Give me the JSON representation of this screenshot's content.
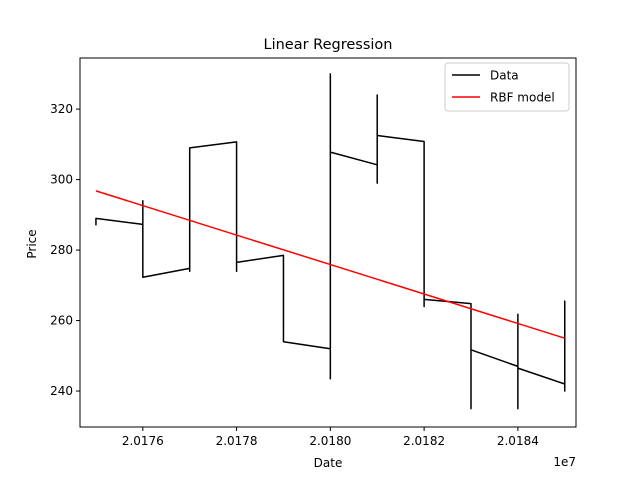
{
  "chart_data": {
    "type": "line",
    "title": "Linear Regression",
    "xlabel": "Date",
    "ylabel": "Price",
    "x_offset_label": "1e7",
    "xlim": [
      20174660,
      20185240
    ],
    "ylim": [
      229.8,
      334.5
    ],
    "xticks": [
      20176000,
      20178000,
      20180000,
      20182000,
      20184000
    ],
    "xtick_labels": [
      "2.0176",
      "2.0178",
      "2.0180",
      "2.0182",
      "2.0184"
    ],
    "yticks": [
      240,
      260,
      280,
      300,
      320
    ],
    "ytick_labels": [
      "240",
      "260",
      "280",
      "300",
      "320"
    ],
    "grid": false,
    "legend_position": "upper right",
    "series": [
      {
        "name": "Data",
        "color": "#000000",
        "points": [
          [
            20175000,
            287
          ],
          [
            20175000,
            289
          ],
          [
            20176000,
            287.3
          ],
          [
            20176000,
            290
          ],
          [
            20176000,
            284
          ],
          [
            20176000,
            294
          ],
          [
            20176000,
            283
          ],
          [
            20176000,
            272.3
          ],
          [
            20177000,
            274.8
          ],
          [
            20177000,
            274
          ],
          [
            20177000,
            294
          ],
          [
            20177000,
            286
          ],
          [
            20177000,
            309
          ],
          [
            20178000,
            310.7
          ],
          [
            20178000,
            302
          ],
          [
            20178000,
            282
          ],
          [
            20178000,
            274
          ],
          [
            20178000,
            276.5
          ],
          [
            20179000,
            278.5
          ],
          [
            20179000,
            271
          ],
          [
            20179000,
            275
          ],
          [
            20179000,
            254
          ],
          [
            20180000,
            252
          ],
          [
            20180000,
            244
          ],
          [
            20180000,
            257
          ],
          [
            20180000,
            243.5
          ],
          [
            20180000,
            330
          ],
          [
            20180000,
            305
          ],
          [
            20180000,
            307.8
          ],
          [
            20181000,
            304.2
          ],
          [
            20181000,
            299
          ],
          [
            20181000,
            324
          ],
          [
            20181000,
            305
          ],
          [
            20181000,
            312.5
          ],
          [
            20182000,
            310.8
          ],
          [
            20182000,
            298
          ],
          [
            20182000,
            289
          ],
          [
            20182000,
            276
          ],
          [
            20182000,
            264
          ],
          [
            20182000,
            266
          ],
          [
            20183000,
            264.8
          ],
          [
            20183000,
            250
          ],
          [
            20183000,
            235
          ],
          [
            20183000,
            261
          ],
          [
            20183000,
            251.7
          ],
          [
            20184000,
            247
          ],
          [
            20184000,
            261.8
          ],
          [
            20184000,
            235
          ],
          [
            20184000,
            255
          ],
          [
            20184000,
            246.5
          ],
          [
            20185000,
            242
          ],
          [
            20185000,
            240
          ],
          [
            20185000,
            249
          ],
          [
            20185000,
            265.5
          ],
          [
            20185000,
            243
          ]
        ]
      },
      {
        "name": "RBF model",
        "color": "#ff0000",
        "points": [
          [
            20175000,
            296.8
          ],
          [
            20185000,
            255
          ]
        ]
      }
    ]
  }
}
